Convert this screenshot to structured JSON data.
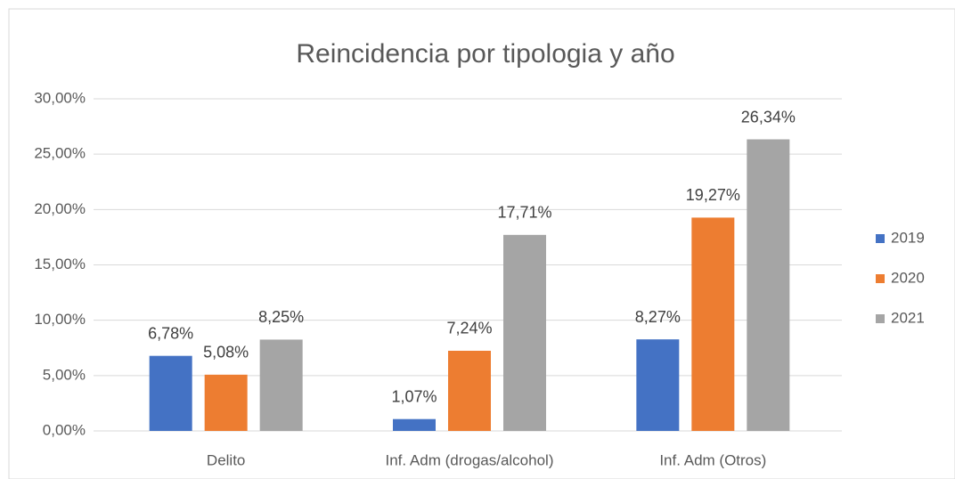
{
  "chart_data": {
    "type": "bar",
    "title": "Reincidencia por tipologia y año",
    "categories": [
      "Delito",
      "Inf. Adm (drogas/alcohol)",
      "Inf. Adm (Otros)"
    ],
    "series": [
      {
        "name": "2019",
        "color": "#4472c4",
        "values": [
          6.78,
          1.07,
          8.27
        ],
        "value_labels": [
          "6,78%",
          "1,07%",
          "8,27%"
        ]
      },
      {
        "name": "2020",
        "color": "#ed7d31",
        "values": [
          5.08,
          7.24,
          19.27
        ],
        "value_labels": [
          "5,08%",
          "7,24%",
          "19,27%"
        ]
      },
      {
        "name": "2021",
        "color": "#a5a5a5",
        "values": [
          8.25,
          17.71,
          26.34
        ],
        "value_labels": [
          "8,25%",
          "17,71%",
          "26,34%"
        ]
      }
    ],
    "ylim": [
      0,
      30
    ],
    "yticks": [
      {
        "value": 0,
        "label": "0,00%"
      },
      {
        "value": 5,
        "label": "5,00%"
      },
      {
        "value": 10,
        "label": "10,00%"
      },
      {
        "value": 15,
        "label": "15,00%"
      },
      {
        "value": 20,
        "label": "20,00%"
      },
      {
        "value": 25,
        "label": "25,00%"
      },
      {
        "value": 30,
        "label": "30,00%"
      }
    ],
    "grid": true,
    "legend": "right"
  }
}
